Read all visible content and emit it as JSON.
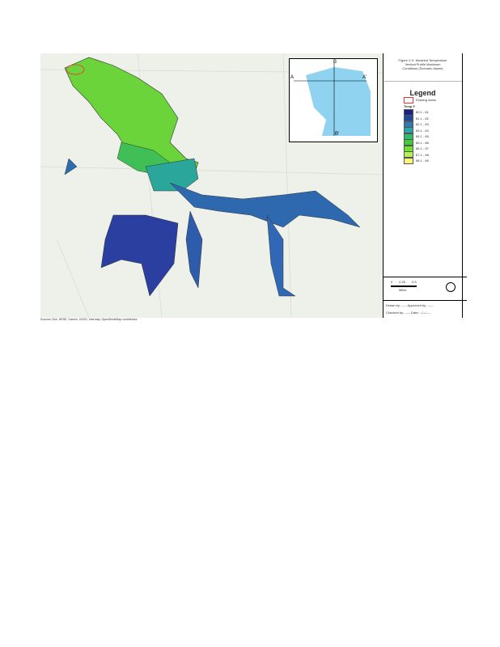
{
  "figure": {
    "title_lines": [
      "Figure X.X: Modeled Temperature",
      "Vertical Profile Maximum",
      "Conditions (Scenario Name)"
    ],
    "legend": {
      "heading": "Legend",
      "dam_label": "Existing dams",
      "temp_label": "Temp F",
      "classes": [
        {
          "label": "80.1 - 81",
          "color": "#1a237e"
        },
        {
          "label": "81.1 - 82",
          "color": "#1f4a9a"
        },
        {
          "label": "82.1 - 83",
          "color": "#2d7bb0"
        },
        {
          "label": "83.1 - 84",
          "color": "#2ba3a8"
        },
        {
          "label": "84.1 - 85",
          "color": "#35b86a"
        },
        {
          "label": "85.1 - 86",
          "color": "#3fcc3a"
        },
        {
          "label": "86.1 - 87",
          "color": "#6fe02c"
        },
        {
          "label": "87.1 - 88",
          "color": "#b6ef5a"
        },
        {
          "label": "88.1 - 89",
          "color": "#fbf57a"
        }
      ]
    },
    "scale": {
      "ticks": [
        "0",
        "0.25",
        "0.5"
      ],
      "unit": "Miles"
    },
    "footer": [
      "Drawn by: ----- Approved by: -----",
      "Checked by: ----- Date: --/--/----"
    ],
    "inset": {
      "labels": [
        "A",
        "B",
        "A'",
        "B'"
      ]
    },
    "credit": "Sources: Esri, HERE, Garmin, USGS, Intermap, OpenStreetMap contributors"
  }
}
